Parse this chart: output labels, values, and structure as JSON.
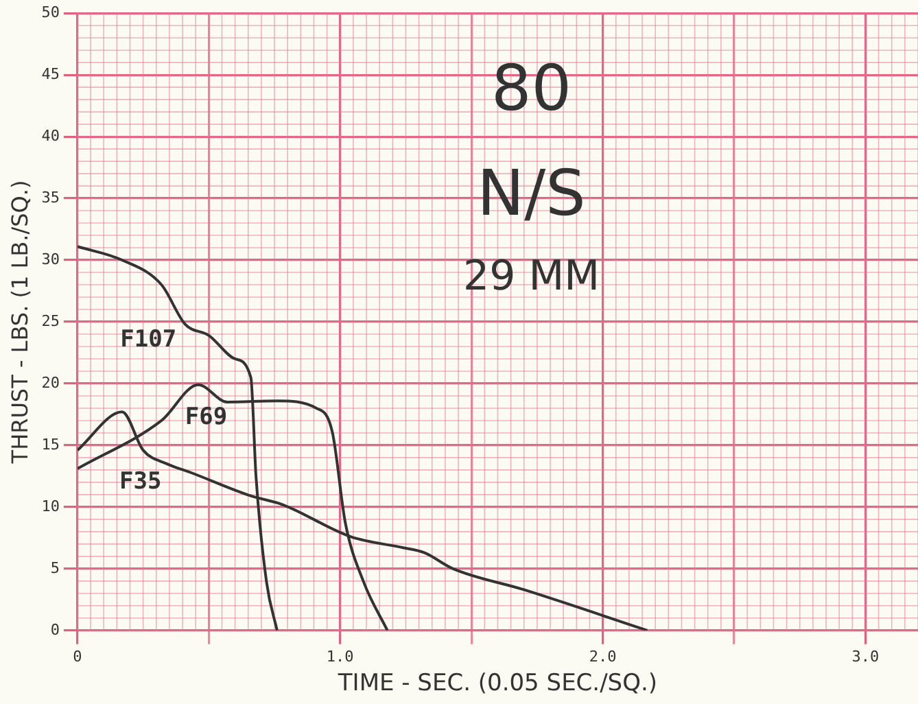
{
  "chart_data": {
    "type": "line",
    "xlabel": "TIME - SEC. (0.05 SEC./SQ.)",
    "ylabel": "THRUST - LBS. (1 LB./SQ.)",
    "annotations": [
      "80",
      "N/S",
      "29 MM"
    ],
    "xlim": [
      0,
      3.2
    ],
    "ylim": [
      0,
      50
    ],
    "xticks": [
      0,
      {
        "value": 0.5,
        "label": null
      },
      {
        "value": 1,
        "label": "1.0"
      },
      {
        "value": 1.5,
        "label": null
      },
      {
        "value": 2,
        "label": "2.0"
      },
      {
        "value": 2.5,
        "label": null
      },
      {
        "value": 3,
        "label": "3.0"
      }
    ],
    "yticks": [
      0,
      5,
      10,
      15,
      20,
      25,
      30,
      35,
      40,
      45,
      50
    ],
    "grid": true,
    "marker": "none",
    "line_style": "solid",
    "legend": false,
    "series": [
      {
        "name": "F107",
        "color": "#333333",
        "x": [
          0,
          0.17,
          0.32,
          0.41,
          0.5,
          0.6,
          0.66,
          0.68,
          0.72,
          0.76
        ],
        "values": [
          31.1,
          30,
          28,
          24.8,
          23.9,
          22,
          20.5,
          12.4,
          3.9,
          0
        ]
      },
      {
        "name": "F69",
        "color": "#333333",
        "x": [
          0,
          0.32,
          0.46,
          0.57,
          0.76,
          0.91,
          0.97,
          1.02,
          1.09,
          1.18
        ],
        "values": [
          13.1,
          17,
          19.9,
          18.5,
          18.6,
          18,
          16.1,
          8.7,
          3.9,
          0
        ]
      },
      {
        "name": "F35",
        "color": "#333333",
        "x": [
          0,
          0.17,
          0.25,
          0.34,
          0.43,
          0.66,
          0.78,
          1.04,
          1.24,
          1.32,
          1.43,
          1.7,
          2.17
        ],
        "values": [
          14.6,
          17.7,
          14.6,
          13.5,
          12.8,
          10.9,
          10.2,
          7.6,
          6.7,
          6.3,
          5,
          3.3,
          0
        ]
      }
    ]
  }
}
